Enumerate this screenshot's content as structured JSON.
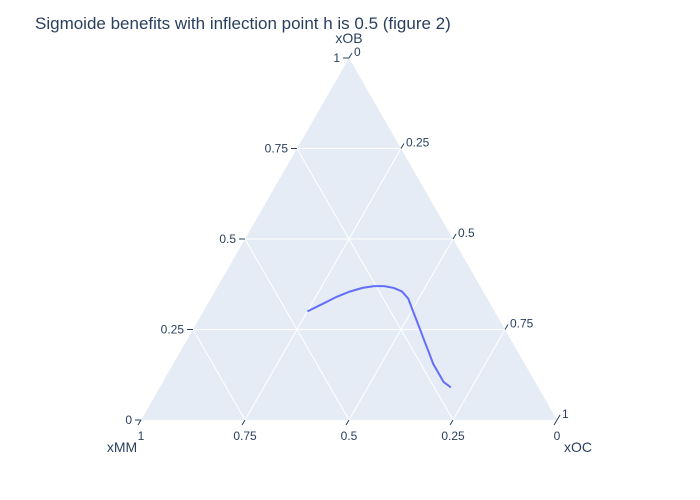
{
  "chart_data": {
    "type": "ternary",
    "title": "Sigmoide benefits with inflection point h is 0.5 (figure 2)",
    "axes": {
      "a": {
        "title": "xOB",
        "ticks": [
          "0",
          "0.25",
          "0.5",
          "0.75",
          "1"
        ]
      },
      "b": {
        "title": "xMM",
        "ticks": [
          "0",
          "0.25",
          "0.5",
          "0.75",
          "1"
        ]
      },
      "c": {
        "title": "xOC",
        "ticks": [
          "0",
          "0.25",
          "0.5",
          "0.75",
          "1"
        ]
      },
      "range": [
        0,
        1
      ]
    },
    "grid": true,
    "colors": {
      "background": "#e5ecf6",
      "grid": "#ffffff",
      "line": "#636efa",
      "text": "#2a3f5f"
    },
    "series": [
      {
        "type": "line",
        "points": [
          {
            "a": 0.3,
            "b": 0.45,
            "c": 0.25
          },
          {
            "a": 0.32,
            "b": 0.405,
            "c": 0.275
          },
          {
            "a": 0.34,
            "b": 0.36,
            "c": 0.3
          },
          {
            "a": 0.355,
            "b": 0.32,
            "c": 0.325
          },
          {
            "a": 0.365,
            "b": 0.285,
            "c": 0.35
          },
          {
            "a": 0.37,
            "b": 0.255,
            "c": 0.375
          },
          {
            "a": 0.37,
            "b": 0.23,
            "c": 0.4
          },
          {
            "a": 0.365,
            "b": 0.21,
            "c": 0.425
          },
          {
            "a": 0.355,
            "b": 0.195,
            "c": 0.45
          },
          {
            "a": 0.335,
            "b": 0.19,
            "c": 0.475
          },
          {
            "a": 0.305,
            "b": 0.195,
            "c": 0.5
          },
          {
            "a": 0.275,
            "b": 0.2,
            "c": 0.525
          },
          {
            "a": 0.245,
            "b": 0.205,
            "c": 0.55
          },
          {
            "a": 0.215,
            "b": 0.21,
            "c": 0.575
          },
          {
            "a": 0.185,
            "b": 0.215,
            "c": 0.6
          },
          {
            "a": 0.155,
            "b": 0.22,
            "c": 0.625
          },
          {
            "a": 0.13,
            "b": 0.22,
            "c": 0.65
          },
          {
            "a": 0.105,
            "b": 0.22,
            "c": 0.675
          },
          {
            "a": 0.09,
            "b": 0.21,
            "c": 0.7
          }
        ]
      }
    ]
  }
}
